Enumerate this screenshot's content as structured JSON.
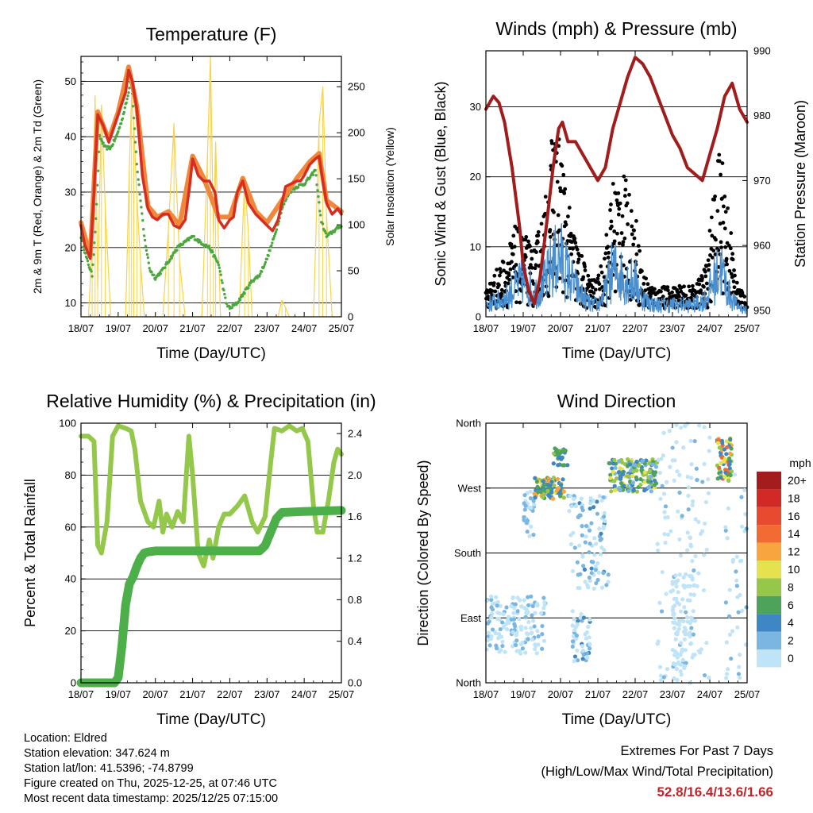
{
  "chart_data": [
    {
      "type": "line",
      "title": "Temperature (F)",
      "xlabel": "Time (Day/UTC)",
      "ylabel": "2m & 9m T (Red, Orange) & 2m Td (Green)",
      "y2label": "Solar Insolation (Yellow)",
      "ylim": [
        7.5,
        54.5
      ],
      "yticks": [
        10,
        20,
        30,
        40,
        50
      ],
      "y2lim": [
        0,
        283
      ],
      "y2ticks": [
        0,
        50,
        100,
        150,
        200,
        250
      ],
      "x_tick_labels": [
        "18/07",
        "19/07",
        "20/07",
        "21/07",
        "22/07",
        "23/07",
        "24/07",
        "25/07"
      ],
      "series": [
        {
          "name": "2m T",
          "color": "#d62d20",
          "x": [
            0,
            0.1,
            0.25,
            0.35,
            0.45,
            0.6,
            0.75,
            0.9,
            1.0,
            1.1,
            1.2,
            1.28,
            1.38,
            1.5,
            1.65,
            1.8,
            1.92,
            2.05,
            2.2,
            2.35,
            2.5,
            2.65,
            2.8,
            2.92,
            3.0,
            3.15,
            3.3,
            3.45,
            3.6,
            3.7,
            3.85,
            4.0,
            4.1,
            4.2,
            4.35,
            4.5,
            4.7,
            4.85,
            5.0,
            5.15,
            5.3,
            5.4,
            5.5,
            5.65,
            5.8,
            5.9,
            6.0,
            6.15,
            6.3,
            6.4,
            6.5,
            6.6,
            6.75,
            6.9,
            7.0
          ],
          "values": [
            24,
            20.5,
            18,
            30,
            44,
            42,
            39,
            42,
            44,
            46,
            48,
            52,
            50,
            45,
            33,
            27,
            25.5,
            25,
            26,
            26,
            24,
            23.5,
            25,
            31,
            36,
            33,
            32,
            32,
            30,
            25,
            23.5,
            25,
            25.5,
            30,
            32,
            28,
            26,
            25,
            24,
            23,
            25,
            28,
            31,
            31.5,
            32,
            32,
            33,
            35,
            36,
            36.5,
            32,
            28,
            26,
            27,
            26
          ]
        },
        {
          "name": "9m T",
          "color": "#f0873a",
          "x": [
            0,
            0.25,
            0.45,
            0.75,
            1.0,
            1.28,
            1.5,
            1.8,
            2.05,
            2.35,
            2.65,
            3.0,
            3.3,
            3.7,
            4.0,
            4.35,
            4.7,
            5.0,
            5.4,
            5.8,
            6.15,
            6.4,
            6.6,
            7.0
          ],
          "values": [
            24.5,
            18.5,
            44.5,
            39.5,
            44.5,
            52.6,
            45.5,
            27.5,
            25.5,
            26.5,
            24,
            36.5,
            32.5,
            25.5,
            25.5,
            32.5,
            26.5,
            24.5,
            28.5,
            32.5,
            35.5,
            37,
            28.5,
            26.5
          ]
        },
        {
          "name": "2m Td",
          "color": "#4aa83c",
          "x": [
            0,
            0.15,
            0.3,
            0.4,
            0.5,
            0.65,
            0.8,
            0.95,
            1.1,
            1.25,
            1.35,
            1.5,
            1.7,
            1.85,
            2.0,
            2.2,
            2.4,
            2.6,
            2.8,
            3.0,
            3.2,
            3.45,
            3.7,
            3.9,
            4.0,
            4.2,
            4.4,
            4.6,
            4.8,
            5.0,
            5.2,
            5.4,
            5.6,
            5.8,
            6.0,
            6.2,
            6.3,
            6.45,
            6.6,
            6.8,
            7.0
          ],
          "values": [
            22,
            18,
            15,
            25,
            40,
            38,
            38,
            40,
            43,
            47,
            51,
            35,
            22,
            16,
            14.5,
            16,
            18,
            20,
            21,
            22,
            21,
            20,
            17,
            10,
            9,
            10,
            12,
            14,
            15,
            18,
            22,
            27,
            30,
            31,
            31.5,
            33,
            34,
            25,
            22,
            23,
            24
          ]
        },
        {
          "name": "Solar Insolation",
          "axis": "y2",
          "color": "#f7d34a",
          "x": [
            0,
            0.2,
            0.3,
            0.38,
            0.45,
            0.55,
            0.65,
            0.8,
            1.2,
            1.3,
            1.36,
            1.42,
            1.5,
            1.6,
            1.7,
            2.2,
            2.35,
            2.5,
            2.65,
            2.8,
            3.25,
            3.4,
            3.48,
            3.56,
            3.62,
            3.75,
            4.25,
            4.4,
            4.5,
            4.6,
            5.3,
            5.4,
            5.5,
            5.6,
            6.25,
            6.4,
            6.5,
            6.6,
            6.75,
            7.0
          ],
          "values": [
            0,
            0,
            80,
            240,
            30,
            230,
            120,
            0,
            0,
            160,
            240,
            210,
            130,
            60,
            0,
            0,
            95,
            210,
            60,
            0,
            0,
            175,
            283,
            90,
            190,
            0,
            0,
            150,
            90,
            0,
            0,
            18,
            10,
            0,
            0,
            210,
            250,
            110,
            0,
            0
          ]
        }
      ]
    },
    {
      "type": "scatter",
      "title": "Winds (mph) & Pressure (mb)",
      "xlabel": "Time (Day/UTC)",
      "ylabel": "Sonic Wind & Gust (Blue, Black)",
      "y2label": "Station Pressure (Maroon)",
      "ylim": [
        0,
        38
      ],
      "yticks": [
        0,
        10,
        20,
        30
      ],
      "y2lim": [
        949,
        990
      ],
      "y2ticks": [
        950,
        960,
        970,
        980,
        990
      ],
      "x_tick_labels": [
        "18/07",
        "19/07",
        "20/07",
        "21/07",
        "22/07",
        "23/07",
        "24/07",
        "25/07"
      ],
      "wind_envelope": {
        "x": [
          0,
          0.5,
          0.8,
          1.0,
          1.3,
          1.6,
          1.8,
          2.0,
          2.2,
          2.5,
          2.8,
          3.0,
          3.2,
          3.4,
          3.6,
          3.8,
          4.0,
          4.2,
          4.5,
          4.8,
          5.0,
          5.3,
          5.6,
          5.9,
          6.1,
          6.3,
          6.5,
          6.7,
          7.0
        ],
        "values": [
          2,
          3,
          5,
          6,
          4,
          6,
          9,
          10,
          7,
          4,
          2,
          2,
          4,
          8,
          7,
          6,
          6,
          3,
          2,
          2,
          2,
          2,
          2,
          3,
          6,
          8,
          4,
          2,
          1
        ]
      },
      "gust_envelope": {
        "x": [
          0,
          0.5,
          0.8,
          1.0,
          1.3,
          1.6,
          1.8,
          2.0,
          2.2,
          2.5,
          2.8,
          3.0,
          3.2,
          3.4,
          3.6,
          3.8,
          4.0,
          4.2,
          4.5,
          4.8,
          5.0,
          5.3,
          5.6,
          5.9,
          6.1,
          6.3,
          6.5,
          6.7,
          7.0
        ],
        "values": [
          4,
          8,
          12,
          11,
          9,
          16,
          25,
          24,
          15,
          9,
          5,
          5,
          10,
          18,
          20,
          17,
          14,
          6,
          4,
          4,
          4,
          4,
          4,
          7,
          16,
          24,
          15,
          5,
          2
        ]
      },
      "series": [
        {
          "name": "Station Pressure",
          "axis": "y2",
          "color": "#a11d1d",
          "x": [
            0,
            0.2,
            0.35,
            0.5,
            0.7,
            0.9,
            1.0,
            1.15,
            1.3,
            1.45,
            1.6,
            1.8,
            1.95,
            2.05,
            2.2,
            2.4,
            2.6,
            2.8,
            3.0,
            3.2,
            3.4,
            3.6,
            3.8,
            4.0,
            4.2,
            4.4,
            4.6,
            4.8,
            5.0,
            5.2,
            5.4,
            5.6,
            5.8,
            6.0,
            6.2,
            6.4,
            6.6,
            6.8,
            7.0
          ],
          "values": [
            981,
            983,
            982,
            979,
            972,
            963,
            957,
            953,
            951,
            955,
            962,
            972,
            978,
            979,
            976,
            976,
            974,
            972,
            970,
            972,
            978,
            982,
            986,
            989,
            988,
            986,
            983,
            980,
            977,
            975,
            972,
            971,
            970,
            974,
            978,
            983,
            985,
            981,
            979
          ]
        }
      ]
    },
    {
      "type": "line",
      "title": "Relative Humidity (%) & Precipitation (in)",
      "xlabel": "Time (Day/UTC)",
      "ylabel": "Percent & Total Rainfall",
      "ylim": [
        0,
        100
      ],
      "yticks": [
        0,
        20,
        40,
        60,
        80,
        100
      ],
      "y2lim": [
        0,
        2.5
      ],
      "y2ticks": [
        0.0,
        0.4,
        0.8,
        1.2,
        1.6,
        2.0,
        2.4
      ],
      "x_tick_labels": [
        "18/07",
        "19/07",
        "20/07",
        "21/07",
        "22/07",
        "23/07",
        "24/07",
        "25/07"
      ],
      "series": [
        {
          "name": "Relative Humidity",
          "color": "#93c84a",
          "x": [
            0,
            0.2,
            0.35,
            0.45,
            0.55,
            0.7,
            0.85,
            1.0,
            1.2,
            1.35,
            1.45,
            1.6,
            1.8,
            1.95,
            2.1,
            2.2,
            2.3,
            2.45,
            2.6,
            2.75,
            2.9,
            3.0,
            3.15,
            3.3,
            3.45,
            3.55,
            3.7,
            3.85,
            4.0,
            4.2,
            4.4,
            4.6,
            4.75,
            4.95,
            5.1,
            5.2,
            5.4,
            5.6,
            5.8,
            5.95,
            6.1,
            6.25,
            6.35,
            6.5,
            6.65,
            6.8,
            6.9,
            7.0
          ],
          "values": [
            95,
            95,
            93,
            53,
            50,
            62,
            95,
            99,
            98,
            97,
            90,
            70,
            62,
            60,
            70,
            58,
            65,
            60,
            66,
            62,
            95,
            80,
            50,
            45,
            55,
            48,
            60,
            65,
            65,
            68,
            72,
            62,
            58,
            64,
            85,
            98,
            97,
            99,
            97,
            98,
            93,
            68,
            58,
            58,
            70,
            85,
            90,
            88
          ]
        },
        {
          "name": "Total Precipitation",
          "axis": "y2",
          "color": "#4caf4a",
          "x": [
            0,
            0.9,
            1.0,
            1.1,
            1.2,
            1.3,
            1.4,
            1.5,
            1.6,
            1.7,
            1.8,
            2.0,
            4.0,
            4.8,
            4.95,
            5.1,
            5.25,
            5.4,
            6.0,
            7.0
          ],
          "values": [
            0,
            0,
            0.05,
            0.35,
            0.75,
            0.95,
            1.02,
            1.12,
            1.2,
            1.25,
            1.26,
            1.27,
            1.27,
            1.27,
            1.32,
            1.45,
            1.58,
            1.64,
            1.65,
            1.66
          ]
        }
      ]
    },
    {
      "type": "scatter",
      "title": "Wind Direction",
      "xlabel": "Time (Day/UTC)",
      "ylabel": "Direction (Colored By Speed)",
      "ylim": [
        0,
        360
      ],
      "yticks": [
        0,
        90,
        180,
        270,
        360
      ],
      "y_tick_labels": [
        "North",
        "East",
        "South",
        "West",
        "North"
      ],
      "x_tick_labels": [
        "18/07",
        "19/07",
        "20/07",
        "21/07",
        "22/07",
        "23/07",
        "24/07",
        "25/07"
      ],
      "colorbar": {
        "title": "mph",
        "labels": [
          "20+",
          "18",
          "16",
          "14",
          "12",
          "10",
          "8",
          "6",
          "4",
          "2",
          "0"
        ],
        "colors": [
          "#a31d1d",
          "#d12a26",
          "#e84a2f",
          "#f26b33",
          "#f8a43f",
          "#e6e14f",
          "#97c74a",
          "#4ea35a",
          "#3f86c4",
          "#7bb6e0",
          "#bfe3f7"
        ]
      },
      "clusters": [
        {
          "x_range": [
            0.0,
            1.6
          ],
          "dir_range": [
            40,
            120
          ],
          "speed": [
            0,
            4
          ],
          "n": 150
        },
        {
          "x_range": [
            1.0,
            1.3
          ],
          "dir_range": [
            200,
            270
          ],
          "speed": [
            1,
            4
          ],
          "n": 30
        },
        {
          "x_range": [
            1.3,
            2.1
          ],
          "dir_range": [
            255,
            285
          ],
          "speed": [
            4,
            14
          ],
          "n": 110
        },
        {
          "x_range": [
            1.8,
            2.2
          ],
          "dir_range": [
            300,
            325
          ],
          "speed": [
            5,
            9
          ],
          "n": 30
        },
        {
          "x_range": [
            2.2,
            3.3
          ],
          "dir_range": [
            130,
            260
          ],
          "speed": [
            0,
            5
          ],
          "n": 100
        },
        {
          "x_range": [
            2.3,
            2.8
          ],
          "dir_range": [
            30,
            100
          ],
          "speed": [
            0,
            5
          ],
          "n": 50
        },
        {
          "x_range": [
            3.3,
            4.6
          ],
          "dir_range": [
            265,
            310
          ],
          "speed": [
            3,
            12
          ],
          "n": 170
        },
        {
          "x_range": [
            4.6,
            6.0
          ],
          "dir_range": [
            0,
            360
          ],
          "speed": [
            0,
            3
          ],
          "n": 130
        },
        {
          "x_range": [
            5.0,
            5.6
          ],
          "dir_range": [
            10,
            150
          ],
          "speed": [
            0,
            2
          ],
          "n": 80
        },
        {
          "x_range": [
            6.2,
            6.6
          ],
          "dir_range": [
            280,
            340
          ],
          "speed": [
            5,
            16
          ],
          "n": 70
        },
        {
          "x_range": [
            6.4,
            7.0
          ],
          "dir_range": [
            0,
            300
          ],
          "speed": [
            0,
            3
          ],
          "n": 40
        }
      ]
    }
  ],
  "info": {
    "location": "Location: Eldred",
    "elevation": "Station elevation: 347.624 m",
    "latlon": "Station lat/lon: 41.5396; -74.8799",
    "created": "Figure created on Thu, 2025-12-25, at 07:46 UTC",
    "recent": "Most recent data timestamp: 2025/12/25 07:15:00"
  },
  "extremes": {
    "title": "Extremes For Past 7 Days",
    "subtitle": "(High/Low/Max Wind/Total Precipitation)",
    "values": "52.8/16.4/13.6/1.66"
  }
}
